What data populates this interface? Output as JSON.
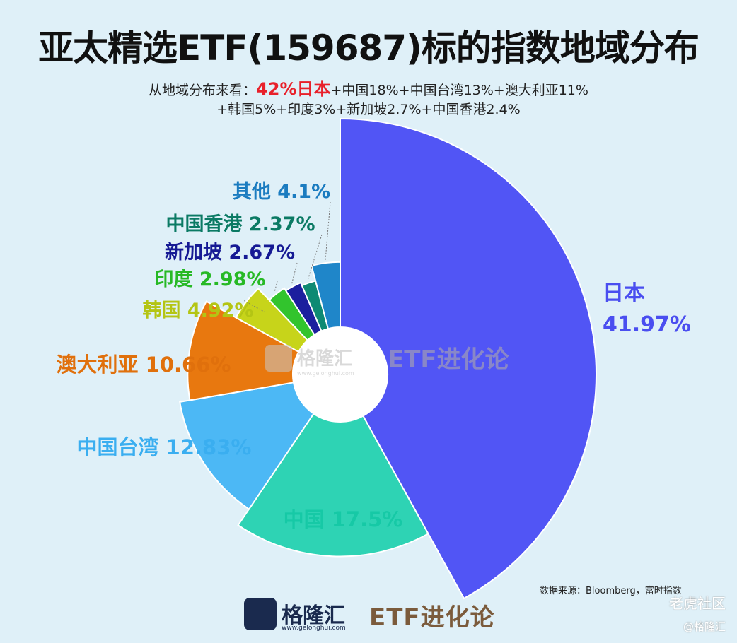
{
  "header": {
    "title": "亚太精选ETF(159687)标的指数地域分布",
    "subtitle_prefix": "从地域分布来看：",
    "subtitle_highlight": "42%日本",
    "subtitle_rest1": "+中国18%+中国台湾13%+澳大利亚11%",
    "subtitle_line2": "+韩国5%+印度3%+新加坡2.7%+中国香港2.4%"
  },
  "chart_data": {
    "type": "pie",
    "variant": "nightingale-rose",
    "slices": [
      {
        "name": "日本",
        "value": 41.97,
        "label_name": "日本",
        "label_value": "41.97%",
        "color": "#5155f5",
        "label_color": "#4a4ef0"
      },
      {
        "name": "中国",
        "value": 17.5,
        "label_name": "中国",
        "label_value": "17.5%",
        "color": "#2ed3b4",
        "label_color": "#16c9a6"
      },
      {
        "name": "中国台湾",
        "value": 12.83,
        "label_name": "中国台湾",
        "label_value": "12.83%",
        "color": "#4cb8f5",
        "label_color": "#3aaef0"
      },
      {
        "name": "澳大利亚",
        "value": 10.66,
        "label_name": "澳大利亚",
        "label_value": "10.66%",
        "color": "#e8780f",
        "label_color": "#e0700c"
      },
      {
        "name": "韩国",
        "value": 4.92,
        "label_name": "韩国",
        "label_value": "4.92%",
        "color": "#c7d41a",
        "label_color": "#b4c514"
      },
      {
        "name": "印度",
        "value": 2.98,
        "label_name": "印度",
        "label_value": "2.98%",
        "color": "#32c42d",
        "label_color": "#27b925"
      },
      {
        "name": "新加坡",
        "value": 2.67,
        "label_name": "新加坡",
        "label_value": "2.67%",
        "color": "#1c1f9e",
        "label_color": "#161a94"
      },
      {
        "name": "中国香港",
        "value": 2.37,
        "label_name": "中国香港",
        "label_value": "2.37%",
        "color": "#0e8a73",
        "label_color": "#0b7a64"
      },
      {
        "name": "其他",
        "value": 4.1,
        "label_name": "其他",
        "label_value": "4.1%",
        "color": "#1f86c9",
        "label_color": "#1b7cc0"
      }
    ],
    "legend": "none"
  },
  "source": "数据来源：Bloomberg，富时指数",
  "footer": {
    "brand": "格隆汇",
    "url": "www.gelonghui.com",
    "series": "ETF进化论"
  },
  "watermarks": {
    "center_brand": "格隆汇",
    "center_url": "www.gelonghui.com",
    "center_series": "ETF进化论",
    "corner1": "老虎社区",
    "corner2": "@格隆汇"
  },
  "colors": {
    "background": "#dff0f8",
    "highlight": "#e8202a",
    "brand": "#1a2a4e",
    "series": "#7b5b3c"
  }
}
